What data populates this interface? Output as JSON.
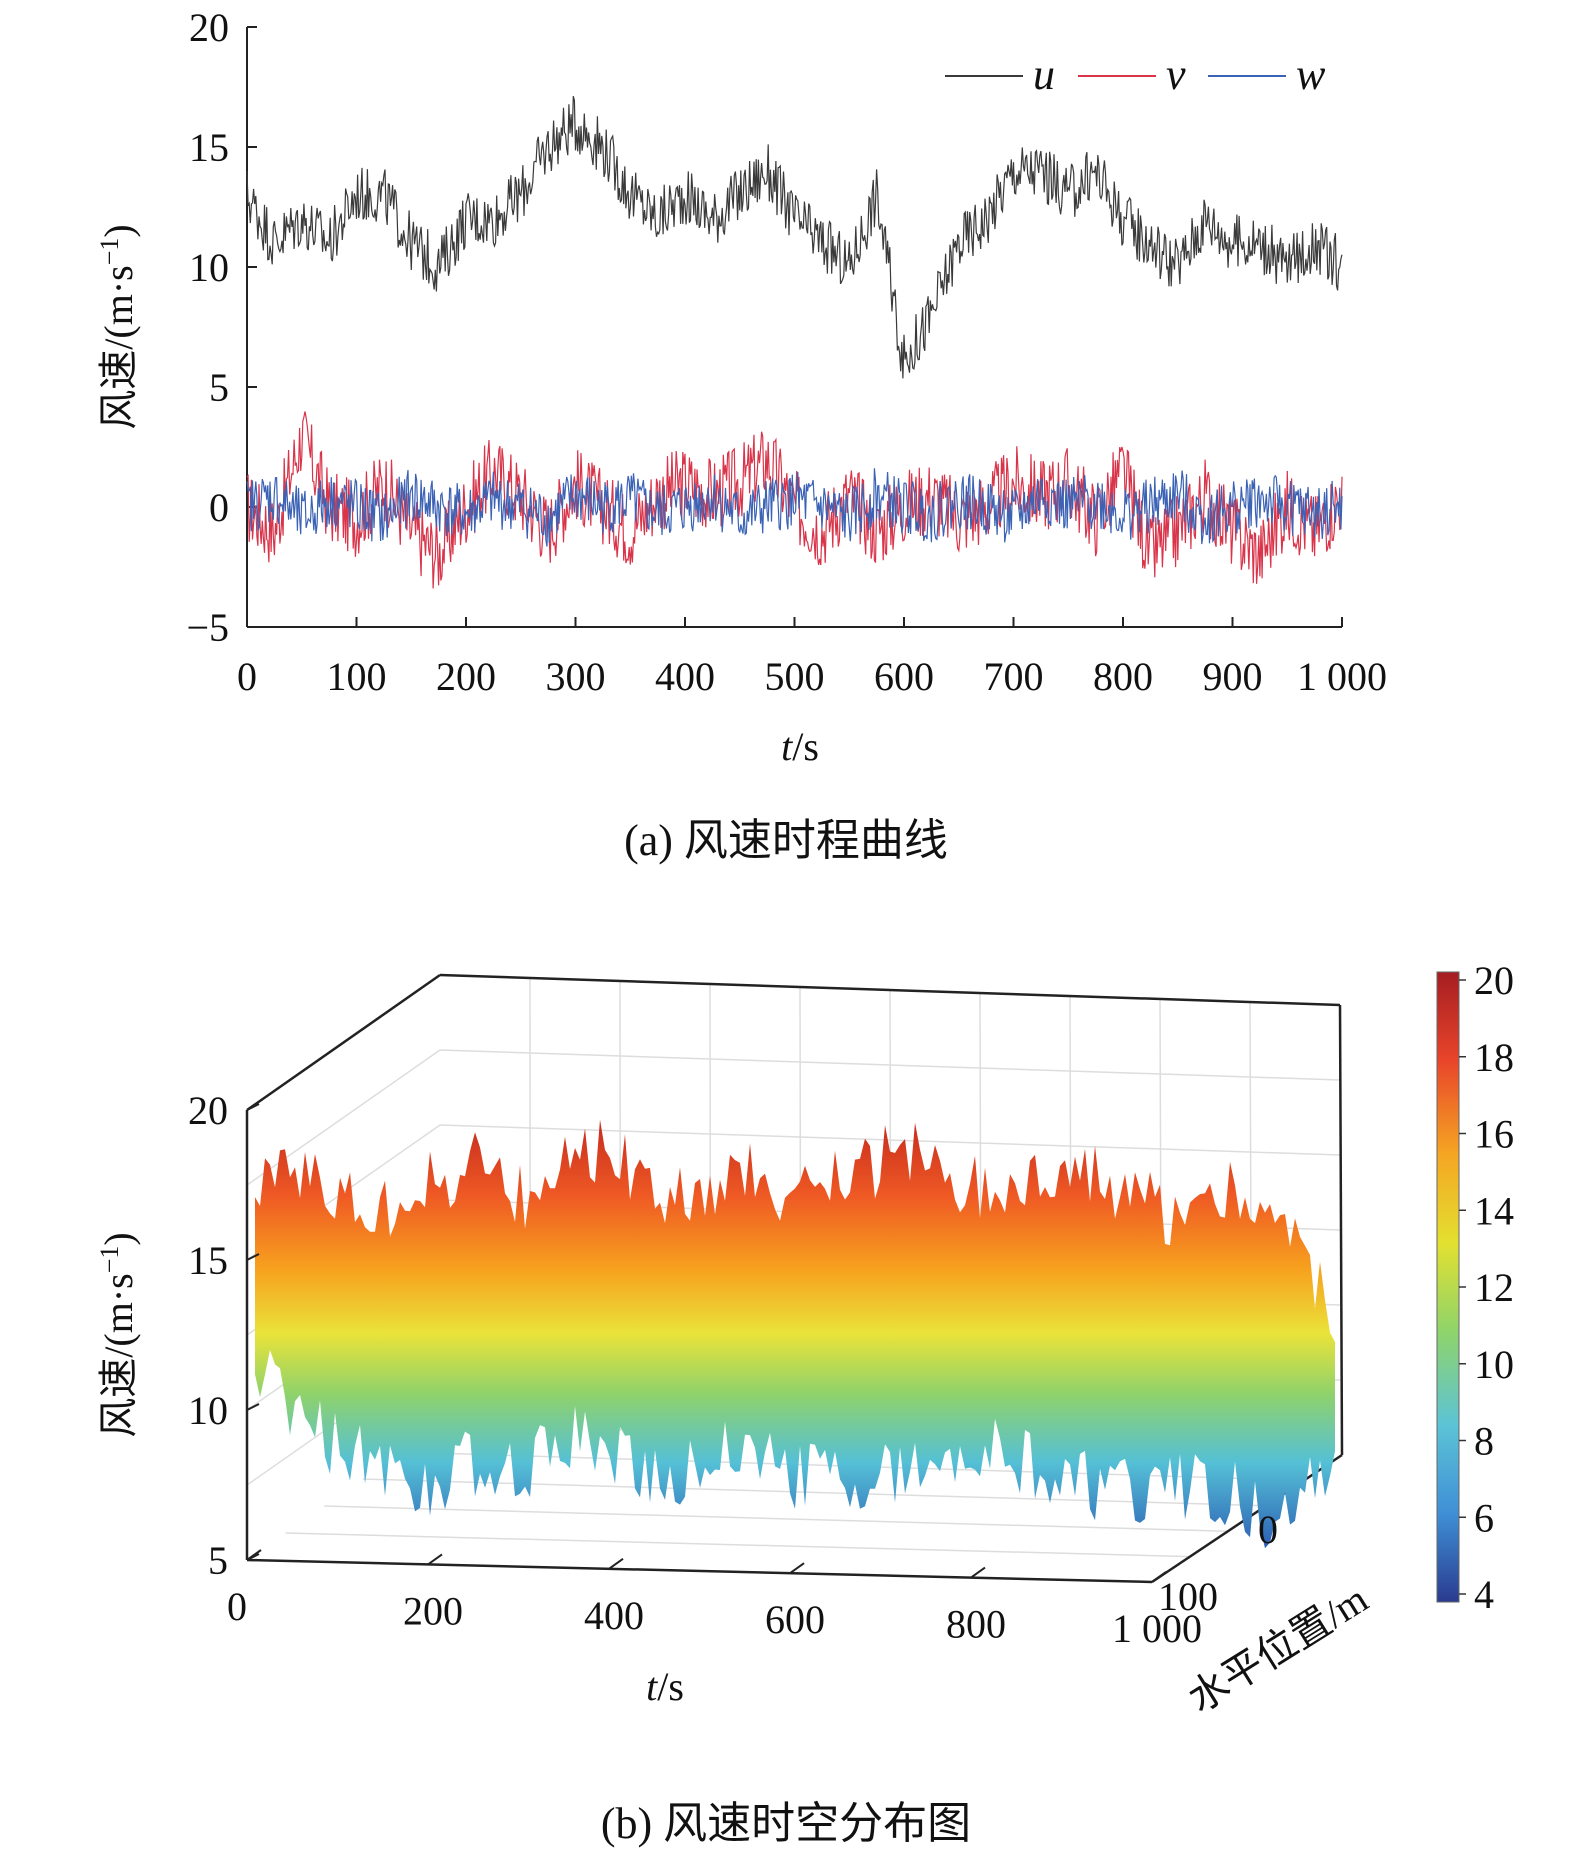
{
  "chart_data": [
    {
      "type": "line",
      "caption": "(a) 风速时程曲线",
      "xlabel_var": "t",
      "xlabel_unit": "/s",
      "ylabel": "风速/(m·s",
      "ylabel_sup": "−1",
      "ylabel_close": ")",
      "xlim": [
        0,
        1000
      ],
      "ylim": [
        -5,
        20
      ],
      "x_ticks": [
        "0",
        "100",
        "200",
        "300",
        "400",
        "500",
        "600",
        "700",
        "800",
        "900",
        "1 000"
      ],
      "y_ticks": [
        "20",
        "15",
        "10",
        "5",
        "0",
        "−5"
      ],
      "legend": {
        "placement": "top-right",
        "entries": [
          "u",
          "v",
          "w"
        ]
      },
      "series": [
        {
          "name": "u",
          "color": "#3a3a3a",
          "x": [
            0,
            25,
            50,
            75,
            100,
            125,
            150,
            175,
            200,
            225,
            250,
            275,
            300,
            325,
            350,
            375,
            400,
            425,
            450,
            475,
            500,
            525,
            550,
            575,
            600,
            625,
            650,
            675,
            700,
            725,
            750,
            775,
            800,
            825,
            850,
            875,
            900,
            925,
            950,
            975,
            1000
          ],
          "y": [
            13,
            11,
            12,
            11,
            13,
            13,
            11,
            10,
            12,
            12,
            13,
            15,
            16,
            15,
            13,
            12,
            13,
            12,
            13,
            14,
            12,
            11,
            10,
            13,
            6,
            8,
            11,
            12,
            14,
            14,
            13,
            14,
            12,
            11,
            10,
            12,
            11,
            11,
            10,
            11,
            10
          ]
        },
        {
          "name": "v",
          "color": "#d9344a",
          "x": [
            0,
            25,
            50,
            75,
            100,
            125,
            150,
            175,
            200,
            225,
            250,
            275,
            300,
            325,
            350,
            375,
            400,
            425,
            450,
            475,
            500,
            525,
            550,
            575,
            600,
            625,
            650,
            675,
            700,
            725,
            750,
            775,
            800,
            825,
            850,
            875,
            900,
            925,
            950,
            975,
            1000
          ],
          "y": [
            0,
            -1,
            3,
            0,
            -0.5,
            1,
            -1,
            -2,
            0,
            1.5,
            0.5,
            -1,
            1,
            0,
            -1,
            0.5,
            1,
            0.5,
            1,
            2,
            0,
            -1,
            0.5,
            -1,
            0,
            0.5,
            -0.5,
            0,
            1,
            0.5,
            1,
            -0.5,
            1.5,
            -2,
            -1,
            0.5,
            -1,
            -2,
            0,
            -1,
            0.5
          ]
        },
        {
          "name": "w",
          "color": "#3b62b5",
          "x": [
            0,
            25,
            50,
            75,
            100,
            125,
            150,
            175,
            200,
            225,
            250,
            275,
            300,
            325,
            350,
            375,
            400,
            425,
            450,
            475,
            500,
            525,
            550,
            575,
            600,
            625,
            650,
            675,
            700,
            725,
            750,
            775,
            800,
            825,
            850,
            875,
            900,
            925,
            950,
            975,
            1000
          ],
          "y": [
            0,
            0.5,
            -0.5,
            0.3,
            0,
            -0.5,
            0.5,
            0,
            -0.3,
            0.3,
            0,
            -0.5,
            0.5,
            0,
            0.3,
            -0.3,
            0,
            0.5,
            -0.5,
            0,
            0.3,
            0,
            -0.5,
            0.5,
            0,
            -0.3,
            0.3,
            0,
            -0.5,
            0.5,
            0,
            0.3,
            -0.3,
            0,
            0.5,
            -0.5,
            0,
            0.3,
            0,
            -0.3,
            0
          ]
        }
      ]
    },
    {
      "type": "heatmap",
      "subtype": "3d-surface",
      "caption": "(b) 风速时空分布图",
      "xlabel_var": "t",
      "xlabel_unit": "/s",
      "ylabel": "风速/(m·s",
      "ylabel_sup": "−1",
      "ylabel_close": ")",
      "depth_label": "水平位置/m",
      "xlim": [
        0,
        1000
      ],
      "zlim": [
        5,
        20
      ],
      "x_ticks": [
        "0",
        "200",
        "400",
        "600",
        "800",
        "1 000"
      ],
      "z_ticks": [
        "20",
        "15",
        "10",
        "5"
      ],
      "depth_ticks": [
        "0",
        "100"
      ],
      "colorbar": {
        "range": [
          4,
          20
        ],
        "ticks": [
          "20",
          "18",
          "16",
          "14",
          "12",
          "10",
          "8",
          "6",
          "4"
        ],
        "colors": [
          "#2a3b8f",
          "#3f8fd6",
          "#5cc3d6",
          "#8fd46a",
          "#e3e030",
          "#f5a623",
          "#e8452a",
          "#a51d22"
        ]
      },
      "x": [
        0,
        50,
        100,
        150,
        200,
        250,
        300,
        350,
        400,
        450,
        500,
        550,
        600,
        650,
        700,
        750,
        800,
        850,
        900,
        950,
        1000
      ],
      "upper": [
        17,
        18,
        16,
        17,
        18,
        17,
        19,
        18,
        17,
        18,
        17,
        18,
        19,
        18,
        18,
        19,
        18,
        17,
        18,
        17,
        14
      ],
      "mid": [
        14,
        13,
        13,
        13,
        13,
        13,
        13,
        13,
        13,
        13,
        13,
        13,
        13,
        13,
        13,
        13,
        13,
        13,
        13,
        13,
        13
      ],
      "lower": [
        12,
        10,
        9,
        8,
        9,
        9,
        10,
        9,
        9,
        10,
        9,
        9,
        9,
        10,
        10,
        9,
        9,
        9,
        9,
        8,
        10
      ]
    }
  ]
}
